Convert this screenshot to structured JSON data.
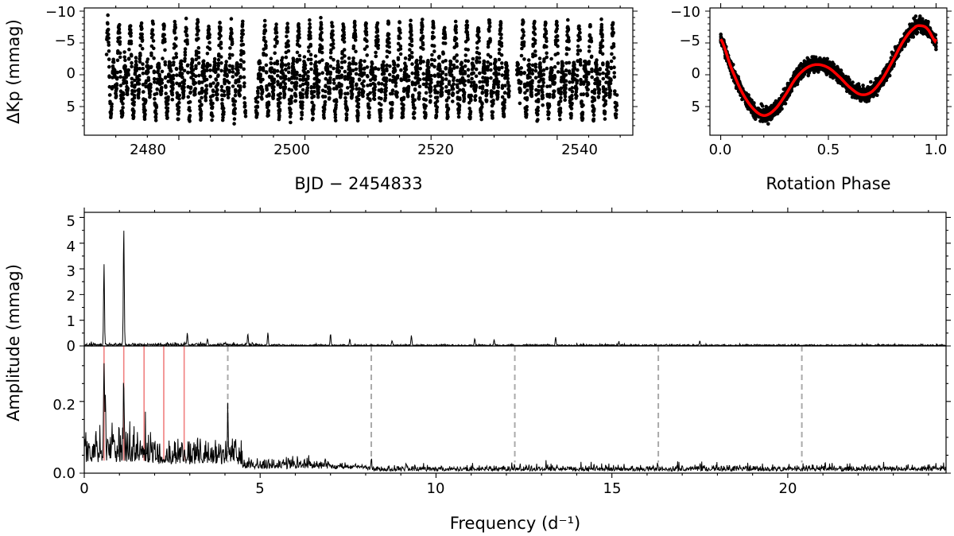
{
  "figure": {
    "background": "#ffffff",
    "ink_color": "#000000",
    "fit_color": "#ff0000",
    "harmonic_line_color": "#f08080",
    "alias_line_color": "#aaaaaa"
  },
  "chart_data": [
    {
      "id": "light-curve",
      "type": "scatter",
      "title": "",
      "xlabel": "BJD − 2454833",
      "ylabel": "ΔKp (mmag)",
      "xlim": [
        2465,
        2552
      ],
      "ylim": [
        9.5,
        -10.5
      ],
      "y_inverted": true,
      "xticks": [
        2480,
        2500,
        2520,
        2540
      ],
      "yticks": [
        -10,
        -5,
        0,
        5
      ],
      "ytick_labels": [
        "−10",
        "−5",
        "0",
        "5"
      ],
      "data_range_x": [
        2468.5,
        2549.5
      ],
      "rotation_period_days": 1.78,
      "gap_days": [
        [
          2490.6,
          2492.2
        ],
        [
          2532.4,
          2533.6
        ]
      ],
      "point_spacing_days": 0.0204,
      "series": [
        {
          "name": "Kepler K2 photometry",
          "marker": "dot",
          "color": "#000000"
        }
      ]
    },
    {
      "id": "phase-curve",
      "type": "scatter",
      "title": "",
      "xlabel": "Rotation Phase",
      "ylabel": "",
      "xlim": [
        -0.05,
        1.05
      ],
      "ylim": [
        9.5,
        -10.5
      ],
      "y_inverted": true,
      "xticks": [
        0.0,
        0.5,
        1.0
      ],
      "xtick_labels": [
        "0.0",
        "0.5",
        "1.0"
      ],
      "yticks": [
        -10,
        -5,
        0,
        5
      ],
      "ytick_labels": [
        "−10",
        "−5",
        "0",
        "5"
      ],
      "model_points": [
        [
          0.0,
          -5.6
        ],
        [
          0.05,
          -1.0
        ],
        [
          0.1,
          2.8
        ],
        [
          0.15,
          5.3
        ],
        [
          0.2,
          6.4
        ],
        [
          0.25,
          5.5
        ],
        [
          0.3,
          3.2
        ],
        [
          0.35,
          0.5
        ],
        [
          0.4,
          -1.1
        ],
        [
          0.45,
          -1.6
        ],
        [
          0.5,
          -1.1
        ],
        [
          0.55,
          0.3
        ],
        [
          0.6,
          2.0
        ],
        [
          0.65,
          3.1
        ],
        [
          0.7,
          2.7
        ],
        [
          0.75,
          0.7
        ],
        [
          0.8,
          -2.3
        ],
        [
          0.85,
          -5.4
        ],
        [
          0.9,
          -7.4
        ],
        [
          0.93,
          -7.7
        ],
        [
          0.96,
          -7.2
        ],
        [
          1.0,
          -5.1
        ]
      ],
      "series": [
        {
          "name": "Phased photometry",
          "marker": "dot",
          "color": "#000000"
        },
        {
          "name": "Harmonic fit",
          "line": "solid",
          "color": "#ff0000"
        }
      ]
    },
    {
      "id": "periodogram-full",
      "type": "line",
      "title": "",
      "xlabel": "",
      "ylabel": "",
      "xlim": [
        0,
        24.5
      ],
      "ylim": [
        0,
        5.2
      ],
      "yticks": [
        0,
        1,
        2,
        3,
        4,
        5
      ],
      "ytick_labels": [
        "0",
        "1",
        "2",
        "3",
        "4",
        "5"
      ],
      "peaks": [
        {
          "frequency": 0.5616,
          "amplitude": 3.15
        },
        {
          "frequency": 1.123,
          "amplitude": 4.58
        },
        {
          "frequency": 2.93,
          "amplitude": 0.47
        },
        {
          "frequency": 3.5,
          "amplitude": 0.25
        },
        {
          "frequency": 4.65,
          "amplitude": 0.45
        },
        {
          "frequency": 5.22,
          "amplitude": 0.5
        },
        {
          "frequency": 7.0,
          "amplitude": 0.4
        },
        {
          "frequency": 7.55,
          "amplitude": 0.25
        },
        {
          "frequency": 8.75,
          "amplitude": 0.2
        },
        {
          "frequency": 9.3,
          "amplitude": 0.4
        },
        {
          "frequency": 11.1,
          "amplitude": 0.25
        },
        {
          "frequency": 11.65,
          "amplitude": 0.2
        },
        {
          "frequency": 13.4,
          "amplitude": 0.3
        },
        {
          "frequency": 15.2,
          "amplitude": 0.12
        },
        {
          "frequency": 17.5,
          "amplitude": 0.15
        }
      ],
      "noise_level": 0.03,
      "series": [
        {
          "name": "Amplitude spectrum",
          "color": "#000000"
        }
      ]
    },
    {
      "id": "periodogram-residual",
      "type": "line",
      "title": "",
      "xlabel": "Frequency (d⁻¹)",
      "ylabel": "Amplitude (mmag)",
      "xlim": [
        0,
        24.5
      ],
      "ylim": [
        0,
        0.355
      ],
      "xticks": [
        0,
        5,
        10,
        15,
        20
      ],
      "xtick_labels": [
        "0",
        "5",
        "10",
        "15",
        "20"
      ],
      "yticks": [
        0.0,
        0.2
      ],
      "ytick_labels": [
        "0.0",
        "0.2"
      ],
      "harmonic_frequencies": [
        0.5616,
        1.1232,
        1.7,
        2.26,
        2.84
      ],
      "alias_frequencies": [
        4.08,
        8.16,
        12.24,
        16.32,
        20.4
      ],
      "peaks": [
        {
          "frequency": 0.5616,
          "amplitude": 0.26
        },
        {
          "frequency": 0.6,
          "amplitude": 0.14
        },
        {
          "frequency": 1.123,
          "amplitude": 0.19
        },
        {
          "frequency": 4.08,
          "amplitude": 0.13
        },
        {
          "frequency": 8.16,
          "amplitude": 0.03
        }
      ],
      "series": [
        {
          "name": "Residual amplitude spectrum",
          "color": "#000000"
        }
      ]
    }
  ]
}
